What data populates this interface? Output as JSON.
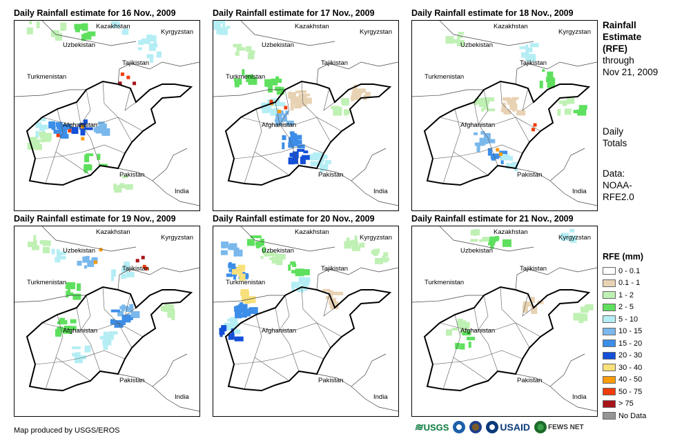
{
  "panels": [
    {
      "title": "Daily Rainfall estimate for 16 Nov., 2009"
    },
    {
      "title": "Daily Rainfall estimate for 17 Nov., 2009"
    },
    {
      "title": "Daily Rainfall estimate for 18 Nov., 2009"
    },
    {
      "title": "Daily Rainfall estimate for 19 Nov., 2009"
    },
    {
      "title": "Daily Rainfall estimate for 20 Nov., 2009"
    },
    {
      "title": "Daily Rainfall estimate for 21 Nov., 2009"
    }
  ],
  "place_labels": {
    "kazakhstan": "Kazakhstan",
    "kyrgyzstan": "Kyrgyzstan",
    "uzbekistan": "Uzbekistan",
    "tajikistan": "Tajikistan",
    "turkmenistan": "Turkmenistan",
    "afghanistan": "Afghanistan",
    "pakistan": "Pakistan",
    "india": "India"
  },
  "side": {
    "line1": "Rainfall",
    "line2": "Estimate",
    "line3": "(RFE)",
    "line4": "through",
    "line5": "Nov 21, 2009",
    "daily1": "Daily",
    "daily2": "Totals",
    "data1": "Data:",
    "data2": "NOAA-",
    "data3": "RFE2.0"
  },
  "legend": {
    "title": "RFE (mm)",
    "items": [
      {
        "label": "0 - 0.1",
        "color": "#ffffff"
      },
      {
        "label": "0.1 - 1",
        "color": "#e8d2b4"
      },
      {
        "label": "1 - 2",
        "color": "#bff0b4"
      },
      {
        "label": "2 - 5",
        "color": "#5ee05e"
      },
      {
        "label": "5 - 10",
        "color": "#b4eef4"
      },
      {
        "label": "10 - 15",
        "color": "#7ab8ec"
      },
      {
        "label": "15 - 20",
        "color": "#3c8ee8"
      },
      {
        "label": "20 - 30",
        "color": "#1450d8"
      },
      {
        "label": "30 - 40",
        "color": "#f8e07a"
      },
      {
        "label": "40 - 50",
        "color": "#f89c0c"
      },
      {
        "label": "50 - 75",
        "color": "#ee3c0a"
      },
      {
        "label": "> 75",
        "color": "#a8141a"
      },
      {
        "label": "No Data",
        "color": "#969696"
      }
    ]
  },
  "footer": {
    "credit": "Map produced by USGS/EROS"
  },
  "logos": {
    "usgs": "USGS",
    "usaid": "USAID",
    "fews": "FEWS NET"
  }
}
